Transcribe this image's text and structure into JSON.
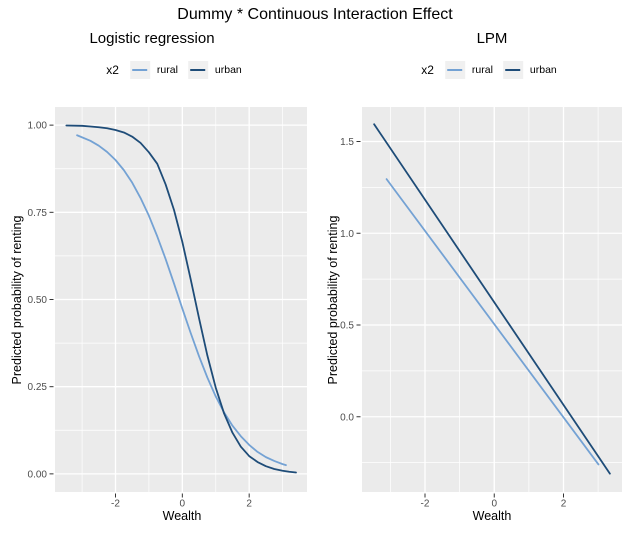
{
  "title": "Dummy * Continuous Interaction Effect",
  "colors": {
    "rural": "#74A2D4",
    "urban": "#1E4C78",
    "panel_bg": "#EBEBEB",
    "grid": "#FFFFFF",
    "axis_text": "#4D4D4D",
    "tick_mark": "#333333",
    "legend_key_bg": "#F0F0F0"
  },
  "legend": {
    "title": "x2",
    "items": [
      {
        "label": "rural",
        "color_key": "rural"
      },
      {
        "label": "urban",
        "color_key": "urban"
      }
    ]
  },
  "chart_data": [
    {
      "type": "line",
      "title": "Logistic regression",
      "xlabel": "Wealth",
      "ylabel": "Predicted probability of renting",
      "legend_title": "x2",
      "legend_position": "top",
      "grid": true,
      "xlim": [
        -3.81,
        3.73
      ],
      "ylim": [
        -0.052,
        1.052
      ],
      "x_ticks": [
        -2,
        0,
        2
      ],
      "x_tick_labels": [
        "-2",
        "0",
        "2"
      ],
      "x_minor": [
        -3,
        -1,
        1,
        3
      ],
      "y_ticks": [
        0,
        0.25,
        0.5,
        0.75,
        1
      ],
      "y_tick_labels": [
        "0.00",
        "0.25",
        "0.50",
        "0.75",
        "1.00"
      ],
      "y_minor": [
        0.125,
        0.375,
        0.625,
        0.875
      ],
      "series": [
        {
          "name": "rural",
          "points": [
            [
              -3.15,
              0.971
            ],
            [
              -2.75,
              0.955
            ],
            [
              -2.5,
              0.941
            ],
            [
              -2.25,
              0.923
            ],
            [
              -2,
              0.9
            ],
            [
              -1.75,
              0.871
            ],
            [
              -1.5,
              0.835
            ],
            [
              -1.25,
              0.791
            ],
            [
              -1,
              0.74
            ],
            [
              -0.75,
              0.681
            ],
            [
              -0.5,
              0.616
            ],
            [
              -0.25,
              0.546
            ],
            [
              0,
              0.474
            ],
            [
              0.25,
              0.404
            ],
            [
              0.5,
              0.337
            ],
            [
              0.75,
              0.276
            ],
            [
              1,
              0.222
            ],
            [
              1.25,
              0.176
            ],
            [
              1.5,
              0.138
            ],
            [
              1.75,
              0.108
            ],
            [
              2,
              0.083
            ],
            [
              2.25,
              0.063
            ],
            [
              2.5,
              0.048
            ],
            [
              2.75,
              0.037
            ],
            [
              3,
              0.028
            ],
            [
              3.1,
              0.025
            ]
          ]
        },
        {
          "name": "urban",
          "points": [
            [
              -3.47,
              0.999
            ],
            [
              -3,
              0.998
            ],
            [
              -2.75,
              0.996
            ],
            [
              -2.5,
              0.994
            ],
            [
              -2.25,
              0.991
            ],
            [
              -2,
              0.986
            ],
            [
              -1.75,
              0.979
            ],
            [
              -1.5,
              0.967
            ],
            [
              -1.25,
              0.949
            ],
            [
              -1,
              0.922
            ],
            [
              -0.75,
              0.889
            ],
            [
              -0.5,
              0.83
            ],
            [
              -0.25,
              0.757
            ],
            [
              0,
              0.665
            ],
            [
              0.25,
              0.558
            ],
            [
              0.5,
              0.446
            ],
            [
              0.75,
              0.339
            ],
            [
              1,
              0.247
            ],
            [
              1.25,
              0.173
            ],
            [
              1.5,
              0.118
            ],
            [
              1.75,
              0.078
            ],
            [
              2,
              0.051
            ],
            [
              2.25,
              0.034
            ],
            [
              2.5,
              0.022
            ],
            [
              2.75,
              0.014
            ],
            [
              3,
              0.009
            ],
            [
              3.2,
              0.006
            ],
            [
              3.4,
              0.004
            ]
          ]
        }
      ]
    },
    {
      "type": "line",
      "title": "LPM",
      "xlabel": "Wealth",
      "ylabel": "Predicted probability of renting",
      "legend_title": "x2",
      "legend_position": "top",
      "grid": true,
      "xlim": [
        -3.82,
        3.69
      ],
      "ylim": [
        -0.41,
        1.688
      ],
      "x_ticks": [
        -2,
        0,
        2
      ],
      "x_tick_labels": [
        "-2",
        "0",
        "2"
      ],
      "x_minor": [
        -3,
        -1,
        1,
        3
      ],
      "y_ticks": [
        0,
        0.5,
        1,
        1.5
      ],
      "y_tick_labels": [
        "0.0",
        "0.5",
        "1.0",
        "1.5"
      ],
      "y_minor": [
        -0.25,
        0.25,
        0.75,
        1.25
      ],
      "series": [
        {
          "name": "rural",
          "points": [
            [
              -3.11,
              1.295
            ],
            [
              3.01,
              -0.26
            ]
          ]
        },
        {
          "name": "urban",
          "points": [
            [
              -3.47,
              1.594
            ],
            [
              3.34,
              -0.31
            ]
          ]
        }
      ]
    }
  ]
}
